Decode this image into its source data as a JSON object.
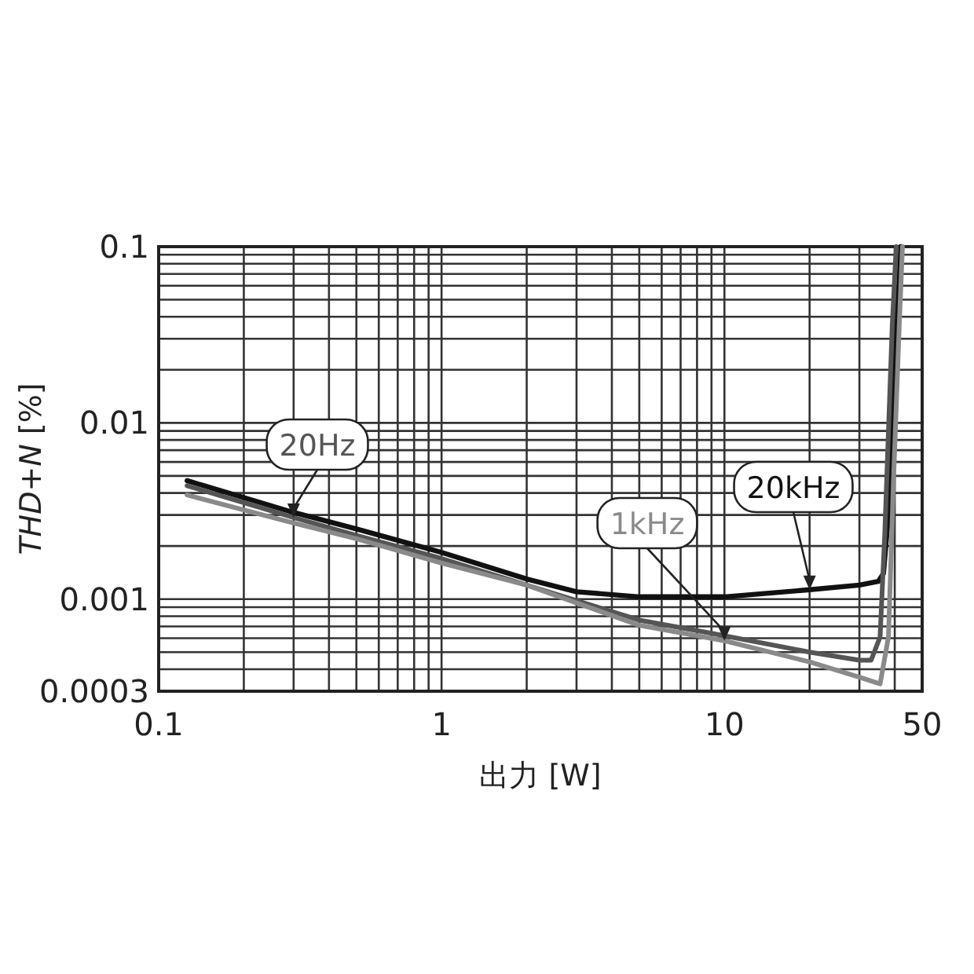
{
  "chart_data": {
    "type": "line",
    "xlabel": "出力 [W]",
    "ylabel": "*THD*+*N* [%]",
    "log": "xy",
    "grid": true,
    "xlim": [
      0.1,
      50
    ],
    "ylim": [
      0.0003,
      0.1
    ],
    "xticks": [
      0.1,
      1,
      10,
      50
    ],
    "yticks": [
      0.0003,
      0.001,
      0.01,
      0.1
    ],
    "series": [
      {
        "name": "20kHz",
        "color": "#111111",
        "x": [
          0.126,
          0.3,
          0.5,
          1,
          2,
          3,
          5,
          10,
          20,
          30,
          35,
          36.5,
          38,
          40,
          42
        ],
        "values": [
          0.0047,
          0.0031,
          0.0025,
          0.00184,
          0.0013,
          0.0011,
          0.00103,
          0.00103,
          0.00113,
          0.0012,
          0.00126,
          0.0014,
          0.003,
          0.02,
          0.1
        ]
      },
      {
        "name": "20Hz",
        "color": "#555555",
        "x": [
          0.126,
          0.3,
          0.5,
          1,
          2,
          5,
          9,
          20,
          30,
          33,
          35.5,
          36.9,
          39.2,
          40.5
        ],
        "values": [
          0.0044,
          0.0029,
          0.0023,
          0.0017,
          0.0012,
          0.00076,
          0.00064,
          0.0005,
          0.00045,
          0.00045,
          0.00061,
          0.0024,
          0.036,
          0.1
        ]
      },
      {
        "name": "1kHz",
        "color": "#8a8a8a",
        "x": [
          0.126,
          0.3,
          0.5,
          1,
          2,
          5,
          10,
          20,
          30,
          35.5,
          38,
          39.6,
          41.5,
          42.6
        ],
        "values": [
          0.0039,
          0.0027,
          0.0022,
          0.0016,
          0.0012,
          0.00071,
          0.00058,
          0.00044,
          0.00036,
          0.00033,
          0.00061,
          0.0047,
          0.036,
          0.1
        ]
      }
    ]
  }
}
